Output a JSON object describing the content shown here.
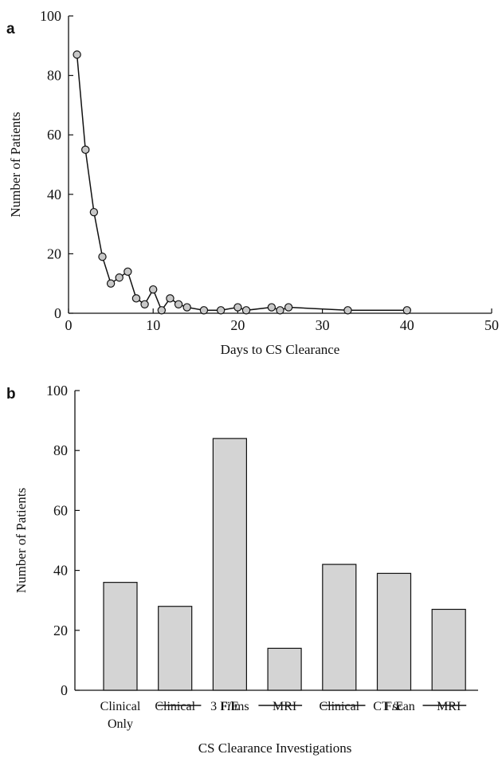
{
  "chart_data": [
    {
      "panel_label": "a",
      "type": "line",
      "xlabel": "Days to CS Clearance",
      "ylabel": "Number of Patients",
      "xlim": [
        0,
        50
      ],
      "ylim": [
        0,
        100
      ],
      "xticks": [
        0,
        10,
        20,
        30,
        40,
        50
      ],
      "yticks": [
        0,
        20,
        40,
        60,
        80,
        100
      ],
      "grid": false,
      "series": [
        {
          "marker": "circle",
          "marker_color": "#c8c8c8",
          "line_color": "#111111",
          "points": [
            {
              "x": 1,
              "y": 87
            },
            {
              "x": 2,
              "y": 55
            },
            {
              "x": 3,
              "y": 34
            },
            {
              "x": 4,
              "y": 19
            },
            {
              "x": 5,
              "y": 10
            },
            {
              "x": 6,
              "y": 12
            },
            {
              "x": 7,
              "y": 14
            },
            {
              "x": 8,
              "y": 5
            },
            {
              "x": 9,
              "y": 3
            },
            {
              "x": 10,
              "y": 8
            },
            {
              "x": 11,
              "y": 1
            },
            {
              "x": 12,
              "y": 5
            },
            {
              "x": 13,
              "y": 3
            },
            {
              "x": 14,
              "y": 2
            },
            {
              "x": 16,
              "y": 1
            },
            {
              "x": 18,
              "y": 1
            },
            {
              "x": 20,
              "y": 2
            },
            {
              "x": 21,
              "y": 1
            },
            {
              "x": 24,
              "y": 2
            },
            {
              "x": 25,
              "y": 1
            },
            {
              "x": 26,
              "y": 2
            },
            {
              "x": 33,
              "y": 1
            },
            {
              "x": 40,
              "y": 1
            }
          ]
        }
      ]
    },
    {
      "panel_label": "b",
      "type": "bar",
      "xlabel": "CS Clearance Investigations",
      "ylabel": "Number of Patients",
      "ylim": [
        0,
        100
      ],
      "yticks": [
        0,
        20,
        40,
        60,
        80,
        100
      ],
      "grid": false,
      "bar_fill": "#d4d4d4",
      "categories": [
        {
          "lines": [
            "Clinical",
            "Only"
          ],
          "value": 36
        },
        {
          "lines": [
            "Clinical"
          ],
          "value": 28
        },
        {
          "lines": [
            "F/E"
          ],
          "value": 84
        },
        {
          "lines": [
            "MRI"
          ],
          "value": 14
        },
        {
          "lines": [
            "Clinical"
          ],
          "value": 42
        },
        {
          "lines": [
            "F/E"
          ],
          "value": 39
        },
        {
          "lines": [
            "MRI"
          ],
          "value": 27
        }
      ],
      "groups": [
        {
          "label": "3 Films",
          "span": [
            1,
            3
          ]
        },
        {
          "label": "CT scan",
          "span": [
            4,
            6
          ]
        }
      ]
    }
  ]
}
